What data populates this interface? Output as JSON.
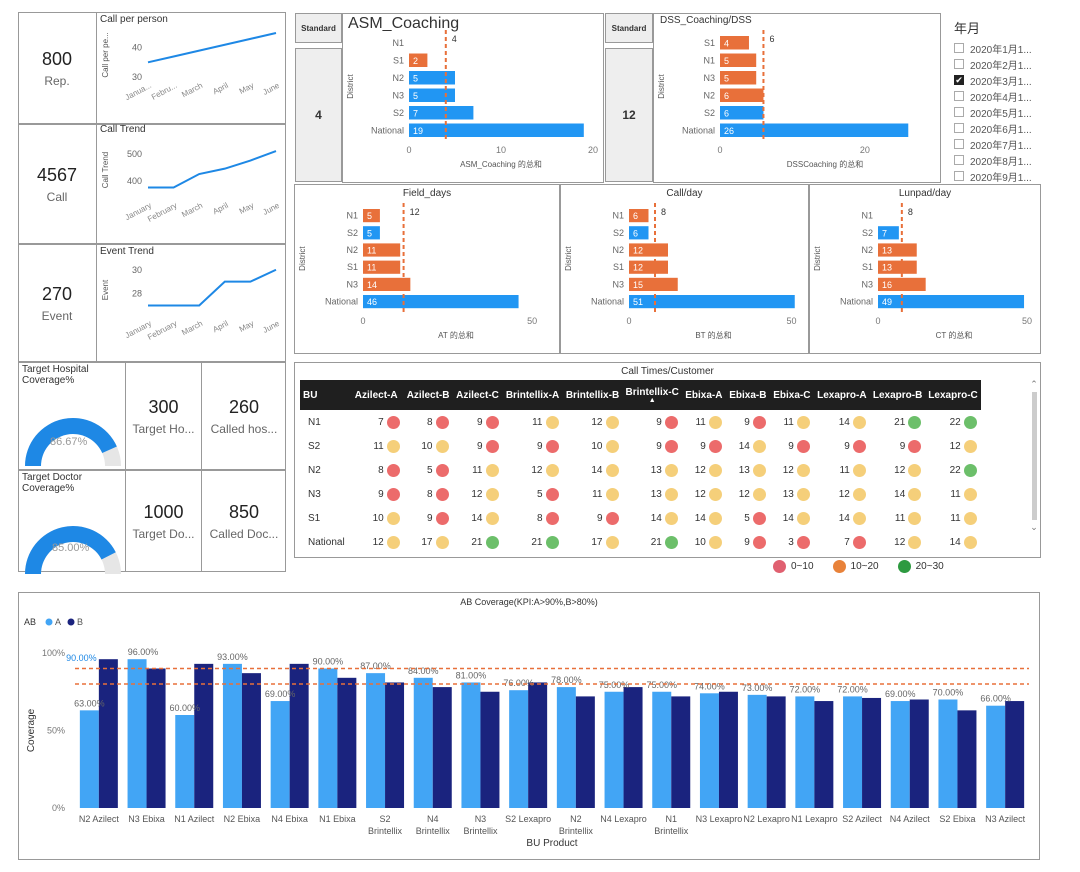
{
  "kpis": [
    {
      "value": "800",
      "label": "Rep."
    },
    {
      "value": "4567",
      "label": "Call"
    },
    {
      "value": "270",
      "label": "Event"
    }
  ],
  "line_charts": [
    {
      "title": "Call per person",
      "ylabel": "Call per pe...",
      "yticks": [
        "40",
        "30"
      ],
      "ylim": [
        30,
        45
      ],
      "x": [
        "Janua...",
        "Febru...",
        "March",
        "April",
        "May",
        "June"
      ],
      "values": [
        35,
        37,
        39,
        41,
        43,
        45
      ]
    },
    {
      "title": "Call Trend",
      "ylabel": "Call Trend",
      "yticks": [
        "500",
        "400"
      ],
      "ylim": [
        340,
        540
      ],
      "x": [
        "January",
        "February",
        "March",
        "April",
        "May",
        "June"
      ],
      "values": [
        375,
        375,
        425,
        445,
        475,
        510
      ]
    },
    {
      "title": "Event Trend",
      "ylabel": "Event",
      "yticks": [
        "30",
        "28"
      ],
      "ylim": [
        26.2,
        30.4
      ],
      "x": [
        "January",
        "February",
        "March",
        "April",
        "May",
        "June"
      ],
      "values": [
        27,
        27,
        27,
        29,
        29,
        30
      ]
    }
  ],
  "coverage_cards": [
    {
      "title": "Target Hospital Coverage%",
      "percent": 86.67,
      "percent_label": "86.67%",
      "kpis": [
        {
          "value": "300",
          "label": "Target Ho..."
        },
        {
          "value": "260",
          "label": "Called hos..."
        }
      ]
    },
    {
      "title": "Target Doctor Coverage%",
      "percent": 85.0,
      "percent_label": "85.00%",
      "kpis": [
        {
          "value": "1000",
          "label": "Target Do..."
        },
        {
          "value": "850",
          "label": "Called Doc..."
        }
      ]
    }
  ],
  "standard_label": "Standard",
  "bar_charts": [
    {
      "title": "ASM_Coaching",
      "standard": "4",
      "ylabel": "District",
      "xlabel": "ASM_Coaching 的总和",
      "categories": [
        "N1",
        "S1",
        "N2",
        "N3",
        "S2",
        "National"
      ],
      "values": [
        null,
        2,
        5,
        5,
        7,
        19
      ],
      "colors": [
        "#e8703a",
        "#e8703a",
        "#2196f3",
        "#2196f3",
        "#2196f3",
        "#2196f3"
      ],
      "target": 4,
      "target_label": "4",
      "xmax": 20,
      "xticks": [
        "0",
        "10",
        "20"
      ],
      "xtickvals": [
        0,
        10,
        20
      ]
    },
    {
      "title": "DSS_Coaching/DSS",
      "standard": "12",
      "ylabel": "District",
      "xlabel": "DSSCoaching 的总和",
      "categories": [
        "S1",
        "N1",
        "N3",
        "N2",
        "S2",
        "National"
      ],
      "values": [
        4,
        5,
        5,
        6,
        6,
        26
      ],
      "colors": [
        "#e8703a",
        "#e8703a",
        "#e8703a",
        "#e8703a",
        "#2196f3",
        "#2196f3"
      ],
      "target": 6,
      "target_label": "6",
      "xmax": 29,
      "xticks": [
        "0",
        "20"
      ],
      "xtickvals": [
        0,
        20
      ]
    },
    {
      "title": "Field_days",
      "ylabel": "District",
      "xlabel": "AT 的总和",
      "categories": [
        "N1",
        "S2",
        "N2",
        "S1",
        "N3",
        "National"
      ],
      "values": [
        5,
        5,
        11,
        11,
        14,
        46
      ],
      "colors": [
        "#e8703a",
        "#2196f3",
        "#e8703a",
        "#e8703a",
        "#e8703a",
        "#2196f3"
      ],
      "target": 12,
      "target_label": "12",
      "xmax": 55,
      "xticks": [
        "0",
        "50"
      ],
      "xtickvals": [
        0,
        50
      ]
    },
    {
      "title": "Call/day",
      "ylabel": "District",
      "xlabel": "BT 的总和",
      "categories": [
        "N1",
        "S2",
        "N2",
        "S1",
        "N3",
        "National"
      ],
      "values": [
        6,
        6,
        12,
        12,
        15,
        51
      ],
      "colors": [
        "#e8703a",
        "#2196f3",
        "#e8703a",
        "#e8703a",
        "#e8703a",
        "#2196f3"
      ],
      "target": 8,
      "target_label": "8",
      "xmax": 52,
      "xticks": [
        "0",
        "50"
      ],
      "xtickvals": [
        0,
        50
      ]
    },
    {
      "title": "Lunpad/day",
      "ylabel": "District",
      "xlabel": "CT 的总和",
      "categories": [
        "N1",
        "S2",
        "N2",
        "S1",
        "N3",
        "National"
      ],
      "values": [
        null,
        7,
        13,
        13,
        16,
        49
      ],
      "colors": [
        "#e8703a",
        "#2196f3",
        "#e8703a",
        "#e8703a",
        "#e8703a",
        "#2196f3"
      ],
      "target": 8,
      "target_label": "8",
      "xmax": 51,
      "xticks": [
        "0",
        "50"
      ],
      "xtickvals": [
        0,
        50
      ]
    }
  ],
  "slicer": {
    "title": "年月",
    "items": [
      {
        "label": "2020年1月1...",
        "checked": false
      },
      {
        "label": "2020年2月1...",
        "checked": false
      },
      {
        "label": "2020年3月1...",
        "checked": true
      },
      {
        "label": "2020年4月1...",
        "checked": false
      },
      {
        "label": "2020年5月1...",
        "checked": false
      },
      {
        "label": "2020年6月1...",
        "checked": false
      },
      {
        "label": "2020年7月1...",
        "checked": false
      },
      {
        "label": "2020年8月1...",
        "checked": false
      },
      {
        "label": "2020年9月1...",
        "checked": false
      }
    ],
    "check_glyph": "✔"
  },
  "table": {
    "title": "Call Times/Customer",
    "headers": [
      "BU",
      "Azilect-A",
      "Azilect-B",
      "Azilect-C",
      "Brintellix-A",
      "Brintellix-B",
      "Brintellix-C",
      "Ebixa-A",
      "Ebixa-B",
      "Ebixa-C",
      "Lexapro-A",
      "Lexapro-B",
      "Lexapro-C"
    ],
    "sort_glyph": "▲",
    "rows": [
      {
        "bu": "N1",
        "values": [
          7,
          8,
          9,
          11,
          12,
          9,
          11,
          9,
          11,
          14,
          21,
          22
        ]
      },
      {
        "bu": "S2",
        "values": [
          11,
          10,
          9,
          9,
          10,
          9,
          9,
          14,
          9,
          9,
          9,
          12
        ]
      },
      {
        "bu": "N2",
        "values": [
          8,
          5,
          11,
          12,
          14,
          13,
          12,
          13,
          12,
          11,
          12,
          22
        ]
      },
      {
        "bu": "N3",
        "values": [
          9,
          8,
          12,
          5,
          11,
          13,
          12,
          12,
          13,
          12,
          14,
          11
        ]
      },
      {
        "bu": "S1",
        "values": [
          10,
          9,
          14,
          8,
          9,
          14,
          14,
          5,
          14,
          14,
          11,
          11
        ]
      },
      {
        "bu": "National",
        "values": [
          12,
          17,
          21,
          21,
          17,
          21,
          10,
          9,
          3,
          7,
          12,
          14
        ]
      }
    ],
    "legend": [
      {
        "label": "0~10",
        "color": "#e06070"
      },
      {
        "label": "10~20",
        "color": "#e8823a"
      },
      {
        "label": "20~30",
        "color": "#2e9a40"
      }
    ],
    "dot_colors": {
      "red": "#ec6b6b",
      "yellow": "#f5cf7a",
      "green": "#6cbf6a"
    },
    "scroll_up": "⌃",
    "scroll_down": "⌄"
  },
  "chart_data": {
    "type": "bar",
    "title": "AB Coverage(KPI:A>90%,B>80%)",
    "legend_title": "AB",
    "xlabel": "BU Product",
    "ylabel": "Coverage",
    "yticks": [
      "100%",
      "50%",
      "0%"
    ],
    "ylim": [
      0,
      100
    ],
    "thresholds": [
      90,
      80
    ],
    "categories": [
      "N2 Azilect",
      "N3 Ebixa",
      "N1 Azilect",
      "N2 Ebixa",
      "N4 Ebixa",
      "N1 Ebixa",
      "S2 Brintellix",
      "N4 Brintellix",
      "N3 Brintellix",
      "S2 Lexapro",
      "N2 Brintellix",
      "N4 Lexapro",
      "N1 Brintellix",
      "N3 Lexapro",
      "N2 Lexapro",
      "N1 Lexapro",
      "S2 Azilect",
      "N4 Azilect",
      "S2 Ebixa",
      "N3 Azilect"
    ],
    "series": [
      {
        "name": "A",
        "color": "#42a5f5",
        "values": [
          63,
          96,
          60,
          93,
          69,
          90,
          87,
          84,
          81,
          76,
          78,
          75,
          75,
          74,
          73,
          72,
          72,
          69,
          70,
          66
        ],
        "labels": [
          "63.00%",
          "96.00%",
          "60.00%",
          "93.00%",
          "69.00%",
          "90.00%",
          "87.00%",
          "84.00%",
          "81.00%",
          "76.00%",
          "78.00%",
          "75.00%",
          "75.00%",
          "74.00%",
          "73.00%",
          "72.00%",
          "72.00%",
          "69.00%",
          "70.00%",
          "66.00%"
        ]
      },
      {
        "name": "B",
        "color": "#1a237e",
        "values": [
          96,
          90,
          93,
          87,
          93,
          84,
          81,
          78,
          75,
          81,
          72,
          78,
          72,
          75,
          72,
          69,
          71,
          70,
          63,
          69
        ]
      }
    ],
    "highlight_label": "90.00%",
    "highlight_color": "#1e88e5"
  }
}
